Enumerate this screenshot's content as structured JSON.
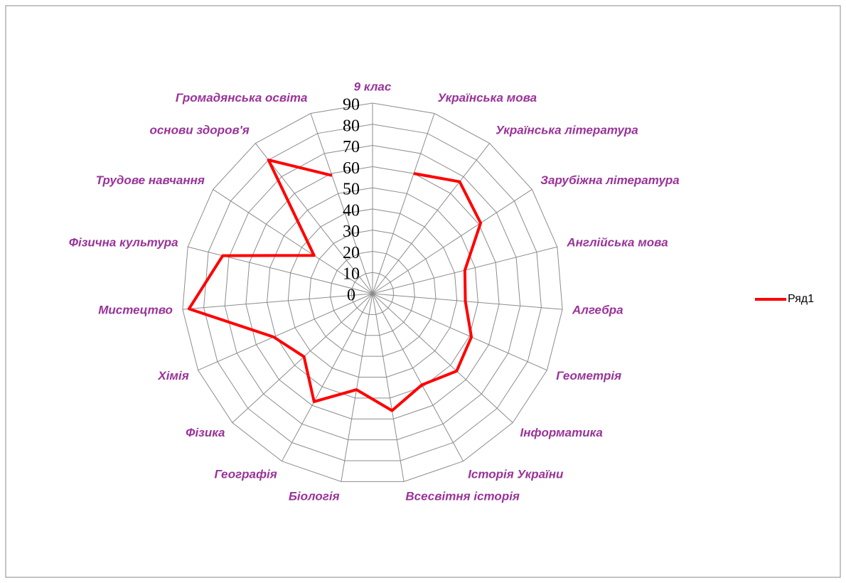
{
  "chart_data": {
    "type": "radar",
    "categories": [
      "9 клас",
      "Українська мова",
      "Українська література",
      "Зарубіжна література",
      "Англійська мова",
      "Алгебра",
      "Геометрія",
      "Інформатика",
      "Історія України",
      "Всесвітня історія",
      "Біологія",
      "Географія",
      "Фізика",
      "Хімія",
      "Мистецтво",
      "Фізична культура",
      "Трудове навчання",
      "основи здоров'я",
      "Громадянська освіта"
    ],
    "series": [
      {
        "name": "Ряд1",
        "color": "#ff0000",
        "values": [
          null,
          60,
          67,
          61,
          45,
          44,
          51,
          54,
          49,
          56,
          46,
          58,
          44,
          51,
          87,
          73,
          33,
          80,
          59
        ]
      }
    ],
    "ylim": [
      0,
      90
    ],
    "yticks": [
      0,
      10,
      20,
      30,
      40,
      50,
      60,
      70,
      80,
      90
    ],
    "grid": true,
    "legend": "right"
  }
}
